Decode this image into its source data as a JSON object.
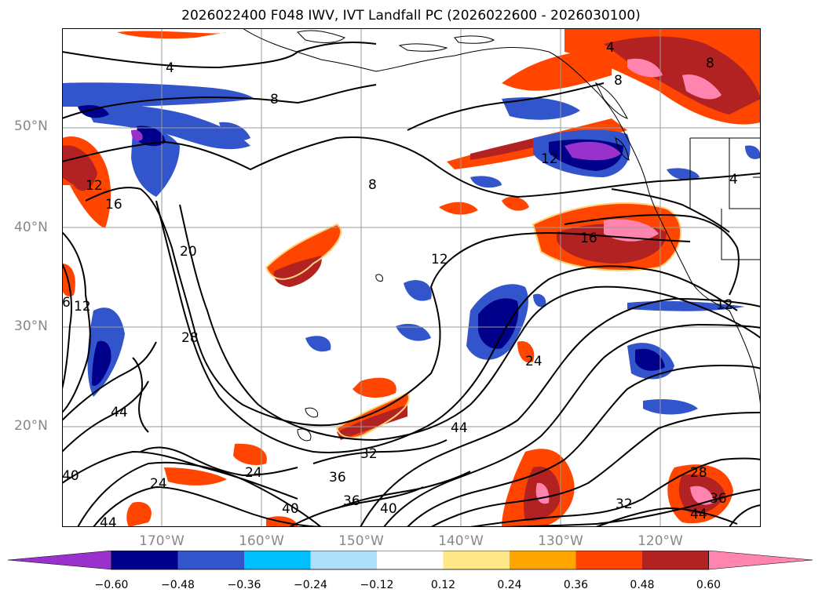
{
  "title": "2026022400 F048 IWV, IVT Landfall PC (2026022600 - 2026030100)",
  "lat_labels": [
    "50°N",
    "40°N",
    "30°N",
    "20°N"
  ],
  "lon_labels": [
    "170°W",
    "160°W",
    "150°W",
    "140°W",
    "130°W",
    "120°W"
  ],
  "colorbar": {
    "tick_labels": [
      "−0.60",
      "−0.48",
      "−0.36",
      "−0.24",
      "−0.12",
      "0.12",
      "0.24",
      "0.36",
      "0.48",
      "0.60"
    ],
    "colors": [
      "#9932cc",
      "#00008b",
      "#3355cc",
      "#00bfff",
      "#aee0fa",
      "#ffffff",
      "#ffe88a",
      "#ffa500",
      "#ff4500",
      "#b22222",
      "#ff85b0"
    ],
    "extend": "both"
  },
  "contour_labels": [
    "4",
    "8",
    "8",
    "8",
    "12",
    "16",
    "16",
    "20",
    "28",
    "24",
    "44",
    "44",
    "32",
    "36",
    "36",
    "40",
    "40",
    "24",
    "24",
    "44",
    "40",
    "32",
    "28",
    "36",
    "44",
    "12",
    "12",
    "6",
    "4",
    "4",
    "8",
    "12",
    "12"
  ],
  "map": {
    "projection": "PlateCarree",
    "lon_range": [
      -180,
      -110
    ],
    "lat_range": [
      10,
      60
    ],
    "grid": true
  }
}
